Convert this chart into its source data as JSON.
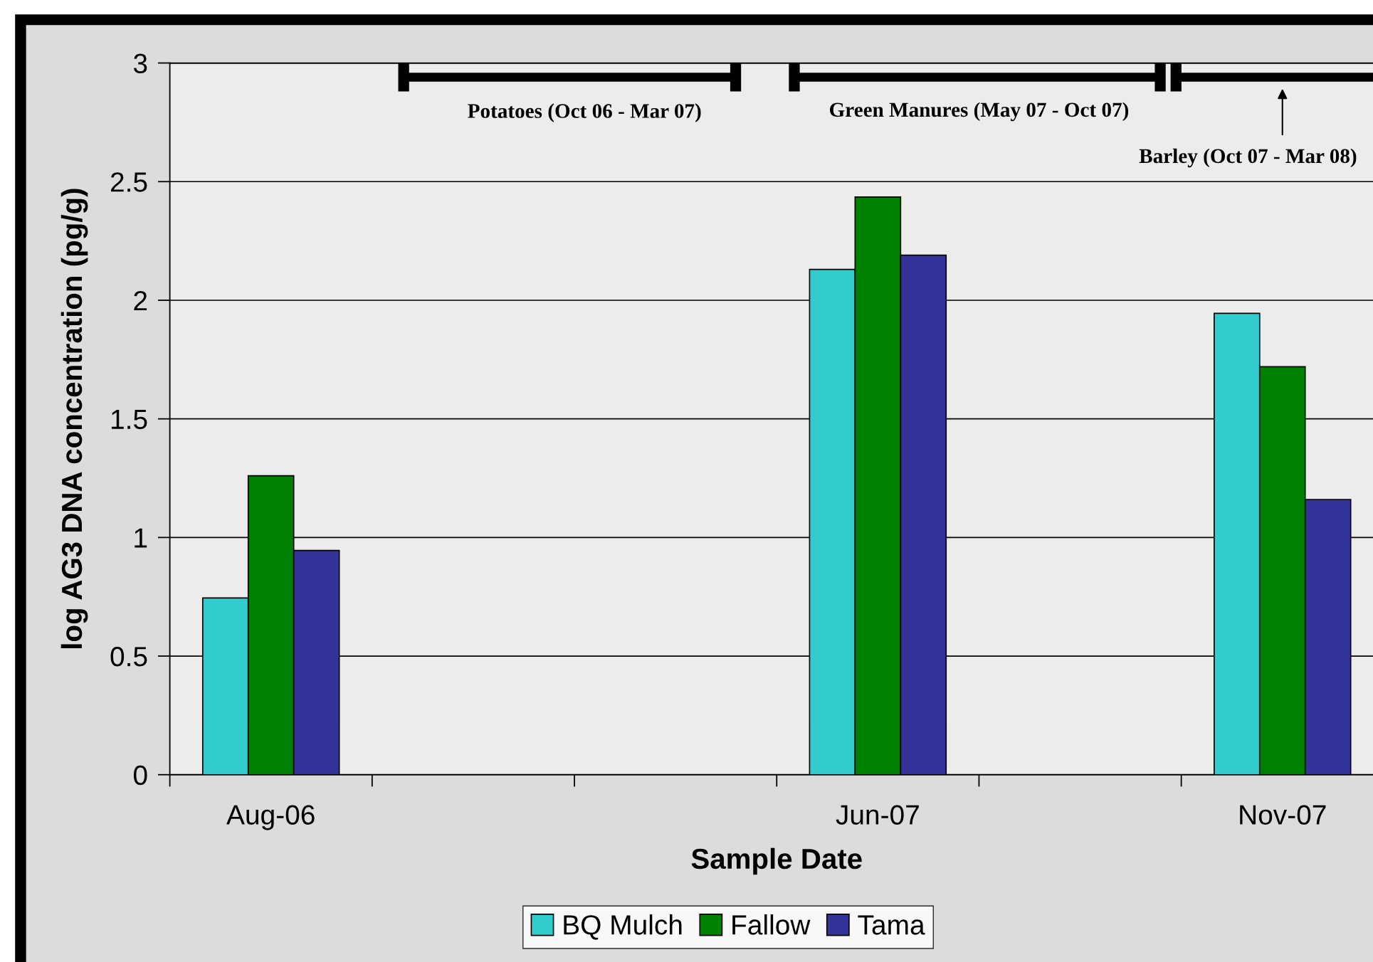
{
  "chart_data": {
    "type": "bar",
    "xlabel": "Sample Date",
    "ylabel": "log AG3 DNA concentration (pg/g)",
    "categories": [
      "Aug-06",
      null,
      null,
      "Jun-07",
      null,
      "Nov-07"
    ],
    "series": [
      {
        "name": "BQ Mulch",
        "color": "#33cccc",
        "values": [
          0.745,
          null,
          null,
          2.13,
          null,
          1.945
        ]
      },
      {
        "name": "Fallow",
        "color": "#008000",
        "values": [
          1.26,
          null,
          null,
          2.435,
          null,
          1.72
        ]
      },
      {
        "name": "Tama",
        "color": "#333399",
        "values": [
          0.945,
          null,
          null,
          2.19,
          null,
          1.16
        ]
      }
    ],
    "ylim": [
      0,
      3
    ],
    "yticks": [
      0,
      0.5,
      1,
      1.5,
      2,
      2.5,
      3
    ],
    "grid": "y",
    "legend": "bottom",
    "annotations": [
      "Potatoes (Oct 06 - Mar 07)",
      "Green Manures (May 07 - Oct 07)",
      "Barley (Oct 07 - Mar 08)"
    ]
  }
}
